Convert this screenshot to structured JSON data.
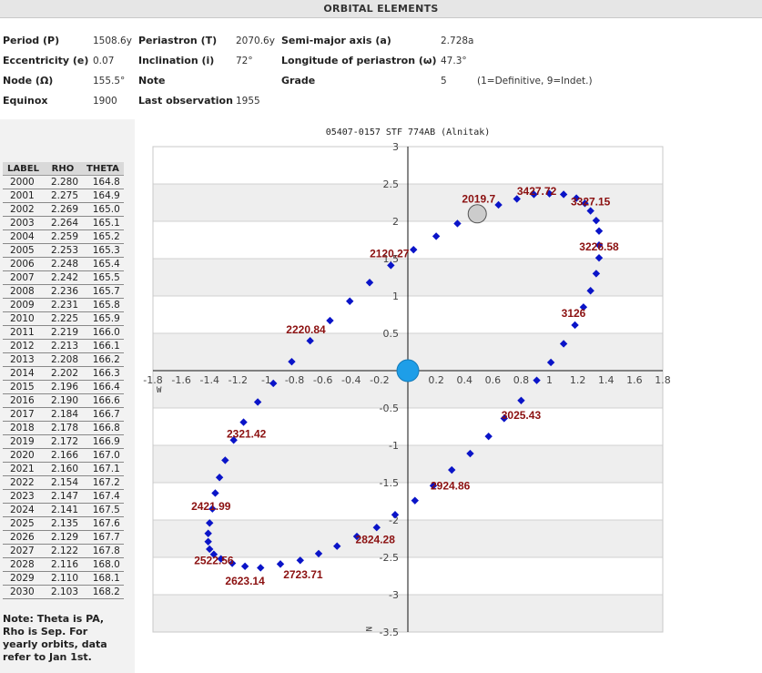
{
  "header": {
    "title": "ORBITAL ELEMENTS"
  },
  "elements": {
    "period_label": "Period (P)",
    "period_value": "1508.6y",
    "periastron_label": "Periastron (T)",
    "periastron_value": "2070.6y",
    "semimajor_label": "Semi-major axis (a)",
    "semimajor_value": "2.728a",
    "ecc_label": "Eccentricity (e)",
    "ecc_value": "0.07",
    "incl_label": "Inclination (i)",
    "incl_value": "72°",
    "longperi_label": "Longitude of periastron (ω)",
    "longperi_value": "47.3°",
    "node_label": "Node (Ω)",
    "node_value": "155.5°",
    "note_label": "Note",
    "grade_label": "Grade",
    "grade_value": "5",
    "grade_hint": "(1=Definitive, 9=Indet.)",
    "equinox_label": "Equinox",
    "equinox_value": "1900",
    "lastobs_label": "Last observation",
    "lastobs_value": "1955"
  },
  "table": {
    "headers": [
      "LABEL",
      "RHO",
      "THETA"
    ],
    "rows": [
      [
        "2000",
        "2.280",
        "164.8"
      ],
      [
        "2001",
        "2.275",
        "164.9"
      ],
      [
        "2002",
        "2.269",
        "165.0"
      ],
      [
        "2003",
        "2.264",
        "165.1"
      ],
      [
        "2004",
        "2.259",
        "165.2"
      ],
      [
        "2005",
        "2.253",
        "165.3"
      ],
      [
        "2006",
        "2.248",
        "165.4"
      ],
      [
        "2007",
        "2.242",
        "165.5"
      ],
      [
        "2008",
        "2.236",
        "165.7"
      ],
      [
        "2009",
        "2.231",
        "165.8"
      ],
      [
        "2010",
        "2.225",
        "165.9"
      ],
      [
        "2011",
        "2.219",
        "166.0"
      ],
      [
        "2012",
        "2.213",
        "166.1"
      ],
      [
        "2013",
        "2.208",
        "166.2"
      ],
      [
        "2014",
        "2.202",
        "166.3"
      ],
      [
        "2015",
        "2.196",
        "166.4"
      ],
      [
        "2016",
        "2.190",
        "166.6"
      ],
      [
        "2017",
        "2.184",
        "166.7"
      ],
      [
        "2018",
        "2.178",
        "166.8"
      ],
      [
        "2019",
        "2.172",
        "166.9"
      ],
      [
        "2020",
        "2.166",
        "167.0"
      ],
      [
        "2021",
        "2.160",
        "167.1"
      ],
      [
        "2022",
        "2.154",
        "167.2"
      ],
      [
        "2023",
        "2.147",
        "167.4"
      ],
      [
        "2024",
        "2.141",
        "167.5"
      ],
      [
        "2025",
        "2.135",
        "167.6"
      ],
      [
        "2026",
        "2.129",
        "167.7"
      ],
      [
        "2027",
        "2.122",
        "167.8"
      ],
      [
        "2028",
        "2.116",
        "168.0"
      ],
      [
        "2029",
        "2.110",
        "168.1"
      ],
      [
        "2030",
        "2.103",
        "168.2"
      ]
    ]
  },
  "note": "Note: Theta is PA, Rho is Sep. For yearly orbits, data refer to Jan 1st.",
  "chart_data": {
    "type": "scatter",
    "title": "05407-0157 STF 774AB (Alnitak)",
    "xlim": [
      -1.8,
      1.8
    ],
    "ylim": [
      -3.5,
      3.0
    ],
    "x_ticks": [
      -1.8,
      -1.6,
      -1.4,
      -1.2,
      -1.0,
      -0.8,
      -0.6,
      -0.4,
      -0.2,
      0.2,
      0.4,
      0.6,
      0.8,
      1.0,
      1.2,
      1.4,
      1.6,
      1.8
    ],
    "y_ticks": [
      3.0,
      2.5,
      2.0,
      1.5,
      1.0,
      0.5,
      -0.5,
      -1.0,
      -1.5,
      -2.0,
      -2.5,
      -3.0,
      -3.5
    ],
    "x_axis_label": "W",
    "y_axis_label": "N",
    "colors": {
      "orbit": "#0a14c8",
      "primary": "#1e9ee8",
      "current": "#cccccc",
      "label": "#8b1010",
      "band": "#eeeeee"
    },
    "primary": {
      "x": 0.0,
      "y": 0.0
    },
    "current_position": {
      "label": "2019.7",
      "x": 0.49,
      "y": 2.1
    },
    "orbit_points": [
      [
        0.04,
        1.62
      ],
      [
        0.2,
        1.8
      ],
      [
        0.35,
        1.97
      ],
      [
        0.5,
        2.1
      ],
      [
        0.64,
        2.22
      ],
      [
        0.77,
        2.3
      ],
      [
        0.89,
        2.36
      ],
      [
        1.0,
        2.37
      ],
      [
        1.1,
        2.36
      ],
      [
        1.19,
        2.31
      ],
      [
        1.25,
        2.24
      ],
      [
        1.29,
        2.14
      ],
      [
        1.33,
        2.01
      ],
      [
        1.35,
        1.87
      ],
      [
        1.35,
        1.68
      ],
      [
        1.35,
        1.51
      ],
      [
        1.33,
        1.3
      ],
      [
        1.29,
        1.07
      ],
      [
        1.24,
        0.85
      ],
      [
        1.18,
        0.61
      ],
      [
        1.1,
        0.36
      ],
      [
        1.01,
        0.11
      ],
      [
        0.91,
        -0.13
      ],
      [
        0.8,
        -0.4
      ],
      [
        0.68,
        -0.64
      ],
      [
        0.57,
        -0.88
      ],
      [
        0.44,
        -1.11
      ],
      [
        0.31,
        -1.33
      ],
      [
        0.18,
        -1.54
      ],
      [
        0.05,
        -1.74
      ],
      [
        -0.09,
        -1.93
      ],
      [
        -0.22,
        -2.1
      ],
      [
        -0.36,
        -2.22
      ],
      [
        -0.5,
        -2.35
      ],
      [
        -0.63,
        -2.45
      ],
      [
        -0.76,
        -2.54
      ],
      [
        -0.9,
        -2.59
      ],
      [
        -1.04,
        -2.64
      ],
      [
        -1.15,
        -2.62
      ],
      [
        -1.24,
        -2.58
      ],
      [
        -1.32,
        -2.52
      ],
      [
        -1.37,
        -2.46
      ],
      [
        -1.4,
        -2.39
      ],
      [
        -1.41,
        -2.29
      ],
      [
        -1.41,
        -2.18
      ],
      [
        -1.4,
        -2.04
      ],
      [
        -1.38,
        -1.85
      ],
      [
        -1.36,
        -1.64
      ],
      [
        -1.33,
        -1.43
      ],
      [
        -1.29,
        -1.2
      ],
      [
        -1.23,
        -0.93
      ],
      [
        -1.16,
        -0.69
      ],
      [
        -1.06,
        -0.42
      ],
      [
        -0.95,
        -0.17
      ],
      [
        -0.82,
        0.12
      ],
      [
        -0.69,
        0.4
      ],
      [
        -0.55,
        0.67
      ],
      [
        -0.41,
        0.93
      ],
      [
        -0.27,
        1.18
      ],
      [
        -0.12,
        1.41
      ]
    ],
    "annotations": [
      {
        "label": "3427.72",
        "x": 0.91,
        "y": 2.4
      },
      {
        "label": "3327.15",
        "x": 1.29,
        "y": 2.26
      },
      {
        "label": "3226.58",
        "x": 1.35,
        "y": 1.66
      },
      {
        "label": "3126",
        "x": 1.17,
        "y": 0.77
      },
      {
        "label": "3025.43",
        "x": 0.8,
        "y": -0.6
      },
      {
        "label": "2924.86",
        "x": 0.3,
        "y": -1.54
      },
      {
        "label": "2824.28",
        "x": -0.23,
        "y": -2.26
      },
      {
        "label": "2723.71",
        "x": -0.74,
        "y": -2.73
      },
      {
        "label": "2623.14",
        "x": -1.15,
        "y": -2.82
      },
      {
        "label": "2522.56",
        "x": -1.37,
        "y": -2.54
      },
      {
        "label": "2421.99",
        "x": -1.39,
        "y": -1.82
      },
      {
        "label": "2321.42",
        "x": -1.14,
        "y": -0.85
      },
      {
        "label": "2220.84",
        "x": -0.72,
        "y": 0.55
      },
      {
        "label": "2120.27",
        "x": -0.13,
        "y": 1.57
      },
      {
        "label": "2019.7",
        "x": 0.5,
        "y": 2.3
      }
    ]
  }
}
